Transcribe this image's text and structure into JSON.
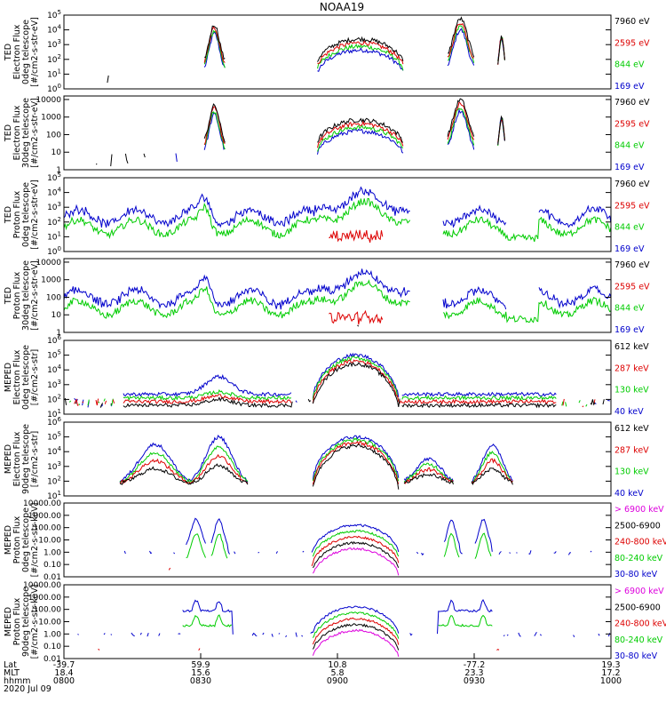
{
  "chart_data": {
    "type": "line",
    "title": "NOAA19",
    "panels": [
      {
        "ylabel_lines": [
          "TED",
          "Electron Flux",
          "0deg telescope",
          "[#/cm2-s-str-eV]"
        ],
        "ytick_labels": [
          "10^0",
          "10^1",
          "10^2",
          "10^3",
          "10^4",
          "10^5"
        ],
        "ylim": [
          0,
          5
        ],
        "legend": [
          {
            "text": "7960 eV",
            "color": "#000000"
          },
          {
            "text": "2595 eV",
            "color": "#dd0000"
          },
          {
            "text": "844 eV",
            "color": "#00cc00"
          },
          {
            "text": "169 eV",
            "color": "#0000cc"
          }
        ],
        "series_color_order": [
          "#0000cc",
          "#00cc00",
          "#dd0000",
          "#000000"
        ],
        "series_names": [
          "169 eV",
          "844 eV",
          "2595 eV",
          "7960 eV"
        ]
      },
      {
        "ylabel_lines": [
          "TED",
          "Electron Flux",
          "30deg telescope",
          "[#/cm2-s-str-eV]"
        ],
        "ytick_labels": [
          "1",
          "10",
          "100",
          "1000",
          "10000"
        ],
        "ylim": [
          0,
          4.2
        ],
        "legend": [
          {
            "text": "7960 eV",
            "color": "#000000"
          },
          {
            "text": "2595 eV",
            "color": "#dd0000"
          },
          {
            "text": "844 eV",
            "color": "#00cc00"
          },
          {
            "text": "169 eV",
            "color": "#0000cc"
          }
        ],
        "series_color_order": [
          "#0000cc",
          "#00cc00",
          "#dd0000",
          "#000000"
        ],
        "series_names": [
          "169 eV",
          "844 eV",
          "2595 eV",
          "7960 eV"
        ]
      },
      {
        "ylabel_lines": [
          "TED",
          "Proton Flux",
          "0deg telescope",
          "[#/cm2-s-str-eV]"
        ],
        "ytick_labels": [
          "10^0",
          "10^1",
          "10^2",
          "10^3",
          "10^4",
          "10^5"
        ],
        "ylim": [
          0,
          5
        ],
        "legend": [
          {
            "text": "7960 eV",
            "color": "#000000"
          },
          {
            "text": "2595 eV",
            "color": "#dd0000"
          },
          {
            "text": "844 eV",
            "color": "#00cc00"
          },
          {
            "text": "169 eV",
            "color": "#0000cc"
          }
        ],
        "series_color_order": [
          "#0000cc",
          "#00cc00",
          "#dd0000",
          "#000000"
        ],
        "series_names": [
          "169 eV",
          "844 eV",
          "2595 eV",
          "7960 eV"
        ]
      },
      {
        "ylabel_lines": [
          "TED",
          "Proton Flux",
          "30deg telescope",
          "[#/cm2-s-str-eV]"
        ],
        "ytick_labels": [
          "1",
          "10",
          "100",
          "1000",
          "10000"
        ],
        "ylim": [
          0,
          4.2
        ],
        "legend": [
          {
            "text": "7960 eV",
            "color": "#000000"
          },
          {
            "text": "2595 eV",
            "color": "#dd0000"
          },
          {
            "text": "844 eV",
            "color": "#00cc00"
          },
          {
            "text": "169 eV",
            "color": "#0000cc"
          }
        ],
        "series_color_order": [
          "#0000cc",
          "#00cc00",
          "#dd0000",
          "#000000"
        ],
        "series_names": [
          "169 eV",
          "844 eV",
          "2595 eV",
          "7960 eV"
        ]
      },
      {
        "ylabel_lines": [
          "MEPED",
          "Electron Flux",
          "0deg telescope",
          "[#/cm2-s-str]"
        ],
        "ytick_labels": [
          "10^1",
          "10^2",
          "10^3",
          "10^4",
          "10^5",
          "10^6"
        ],
        "ylim": [
          1,
          6
        ],
        "legend": [
          {
            "text": "612 keV",
            "color": "#000000"
          },
          {
            "text": "287 keV",
            "color": "#dd0000"
          },
          {
            "text": "130 keV",
            "color": "#00cc00"
          },
          {
            "text": "40 keV",
            "color": "#0000cc"
          }
        ],
        "series_color_order": [
          "#0000cc",
          "#00cc00",
          "#dd0000",
          "#000000"
        ],
        "series_names": [
          "40 keV",
          "130 keV",
          "287 keV",
          "612 keV"
        ]
      },
      {
        "ylabel_lines": [
          "MEPED",
          "Electron Flux",
          "90deg telescope",
          "[#/cm2-s-str]"
        ],
        "ytick_labels": [
          "10^1",
          "10^2",
          "10^3",
          "10^4",
          "10^5",
          "10^6"
        ],
        "ylim": [
          1,
          6
        ],
        "legend": [
          {
            "text": "612 keV",
            "color": "#000000"
          },
          {
            "text": "287 keV",
            "color": "#dd0000"
          },
          {
            "text": "130 keV",
            "color": "#00cc00"
          },
          {
            "text": "40 keV",
            "color": "#0000cc"
          }
        ],
        "series_color_order": [
          "#0000cc",
          "#00cc00",
          "#dd0000",
          "#000000"
        ],
        "series_names": [
          "40 keV",
          "130 keV",
          "287 keV",
          "612 keV"
        ]
      },
      {
        "ylabel_lines": [
          "MEPED",
          "Proton Flux",
          "0deg telescope",
          "[#/cm2-s-str-keV]"
        ],
        "ytick_labels": [
          "0.01",
          "0.10",
          "1.00",
          "10.00",
          "100.00",
          "1000.00",
          "10000.00"
        ],
        "ylim": [
          -2,
          4
        ],
        "legend": [
          {
            "text": "> 6900 keV",
            "color": "#dd00dd"
          },
          {
            "text": "2500-6900",
            "color": "#000000"
          },
          {
            "text": "240-800 keV",
            "color": "#dd0000"
          },
          {
            "text": "80-240 keV",
            "color": "#00cc00"
          },
          {
            "text": "30-80 keV",
            "color": "#0000cc"
          }
        ],
        "series_color_order": [
          "#0000cc",
          "#00cc00",
          "#dd0000",
          "#000000",
          "#dd00dd"
        ],
        "series_names": [
          "30-80 keV",
          "80-240 keV",
          "240-800 keV",
          "2500-6900",
          "> 6900 keV"
        ]
      },
      {
        "ylabel_lines": [
          "MEPED",
          "Proton Flux",
          "90deg telescope",
          "[#/cm2-s-str-keV]"
        ],
        "ytick_labels": [
          "0.01",
          "0.10",
          "1.00",
          "10.00",
          "100.00",
          "1000.00",
          "10000.00"
        ],
        "ylim": [
          -2,
          4
        ],
        "legend": [
          {
            "text": "> 6900 keV",
            "color": "#dd00dd"
          },
          {
            "text": "2500-6900",
            "color": "#000000"
          },
          {
            "text": "240-800 keV",
            "color": "#dd0000"
          },
          {
            "text": "80-240 keV",
            "color": "#00cc00"
          },
          {
            "text": "30-80 keV",
            "color": "#0000cc"
          }
        ],
        "series_color_order": [
          "#0000cc",
          "#00cc00",
          "#dd0000",
          "#000000",
          "#dd00dd"
        ],
        "series_names": [
          "30-80 keV",
          "80-240 keV",
          "240-800 keV",
          "2500-6900",
          "> 6900 keV"
        ]
      }
    ],
    "x_axis": {
      "xlim_minutes": [
        0,
        120
      ],
      "rows": [
        {
          "label": "Lat",
          "values": [
            "-39.7",
            "59.9",
            "10.8",
            "-77.2",
            "19.3"
          ]
        },
        {
          "label": "MLT",
          "values": [
            "18.4",
            "15.6",
            "5.8",
            "23.3",
            "17.2"
          ]
        },
        {
          "label": "hhmm",
          "values": [
            "0800",
            "0830",
            "0900",
            "0930",
            "1000"
          ]
        }
      ],
      "tick_minutes": [
        0,
        30,
        60,
        90,
        120
      ],
      "date": "2020 Jul 09"
    }
  }
}
